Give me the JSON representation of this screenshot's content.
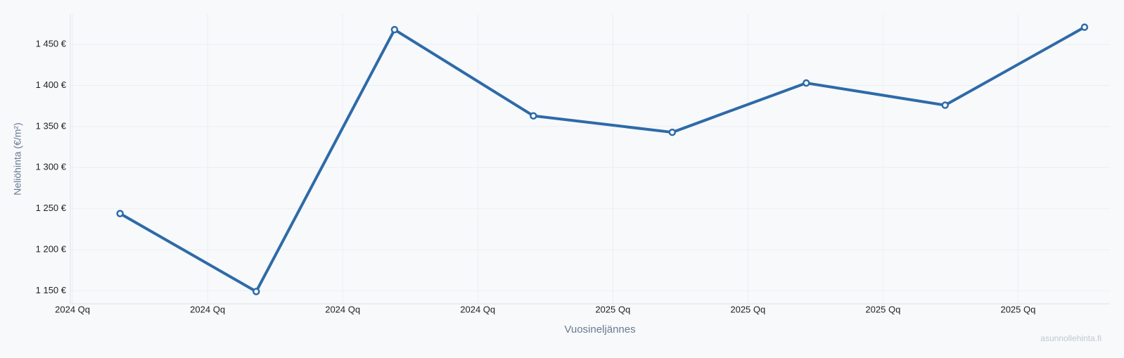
{
  "chart_data": {
    "type": "line",
    "x_label": "Vuosineljännes",
    "y_label": "Neliöhinta (€/m²)",
    "watermark": "asunnollehinta.fi",
    "x": [
      2024.088,
      2024.34,
      2024.596,
      2024.853,
      2025.11,
      2025.358,
      2025.615,
      2025.873
    ],
    "series": [
      {
        "color": "#2e6aa8",
        "values": [
          1244,
          1149,
          1468,
          1363,
          1343,
          1403,
          1376,
          1471
        ]
      }
    ],
    "xlim": [
      2023.996,
      2025.92
    ],
    "xticks": [
      {
        "value": 2024,
        "label": "2024 Qq"
      },
      {
        "value": 2024.25,
        "label": "2024 Qq"
      },
      {
        "value": 2024.5,
        "label": "2024 Qq"
      },
      {
        "value": 2024.75,
        "label": "2024 Qq"
      },
      {
        "value": 2025,
        "label": "2025 Qq"
      },
      {
        "value": 2025.25,
        "label": "2025 Qq"
      },
      {
        "value": 2025.5,
        "label": "2025 Qq"
      },
      {
        "value": 2025.75,
        "label": "2025 Qq"
      }
    ],
    "ylim": [
      1134,
      1487
    ],
    "yticks": [
      {
        "value": 1150,
        "label": "1 150 €"
      },
      {
        "value": 1200,
        "label": "1 200 €"
      },
      {
        "value": 1250,
        "label": "1 250 €"
      },
      {
        "value": 1300,
        "label": "1 300 €"
      },
      {
        "value": 1350,
        "label": "1 350 €"
      },
      {
        "value": 1400,
        "label": "1 400 €"
      },
      {
        "value": 1450,
        "label": "1 450 €"
      }
    ],
    "grid": true
  }
}
